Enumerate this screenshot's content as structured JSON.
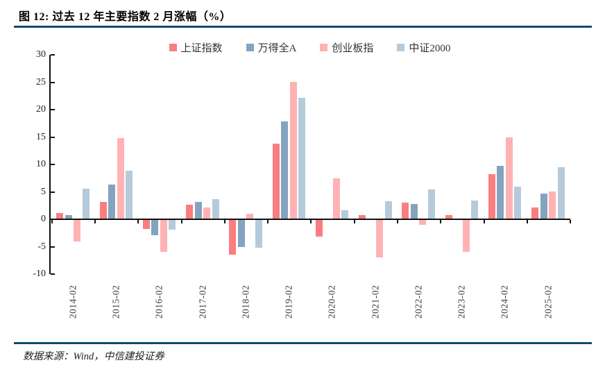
{
  "header": {
    "title": "图 12: 过去 12 年主要指数 2 月涨幅（%）"
  },
  "footer": {
    "source": "数据来源：Wind，中信建投证券"
  },
  "colors": {
    "rule": "#0d4a6f",
    "axis": "#111111",
    "series_sse": "#fa7e80",
    "series_winda": "#84a3bf",
    "series_chinext": "#ffb2b4",
    "series_csi2000": "#b5cbdb"
  },
  "chart_data": {
    "type": "bar",
    "title": "过去 12 年主要指数 2 月涨幅（%）",
    "xlabel": "",
    "ylabel": "",
    "ylim": [
      -10,
      30
    ],
    "ytick_step": 5,
    "grid": false,
    "legend_position": "top",
    "categories": [
      "2014-02",
      "2015-02",
      "2016-02",
      "2017-02",
      "2018-02",
      "2019-02",
      "2020-02",
      "2021-02",
      "2022-02",
      "2023-02",
      "2024-02",
      "2025-02"
    ],
    "series": [
      {
        "name": "上证指数",
        "color": "#fa7e80",
        "values": [
          1.1,
          3.2,
          -1.8,
          2.6,
          -6.4,
          13.8,
          -3.2,
          0.8,
          3.0,
          0.7,
          8.2,
          2.2
        ]
      },
      {
        "name": "万得全A",
        "color": "#84a3bf",
        "values": [
          0.8,
          6.3,
          -2.9,
          3.2,
          -5.0,
          17.9,
          0.0,
          0.0,
          2.8,
          0.0,
          9.7,
          4.7
        ]
      },
      {
        "name": "创业板指",
        "color": "#ffb2b4",
        "values": [
          -4.1,
          14.8,
          -5.9,
          2.2,
          1.0,
          25.1,
          7.5,
          -6.9,
          -1.0,
          -5.9,
          14.9,
          5.1
        ]
      },
      {
        "name": "中证2000",
        "color": "#b5cbdb",
        "values": [
          5.6,
          8.8,
          -1.9,
          3.7,
          -5.2,
          22.1,
          1.7,
          3.3,
          5.4,
          3.4,
          5.9,
          9.5
        ]
      }
    ]
  }
}
